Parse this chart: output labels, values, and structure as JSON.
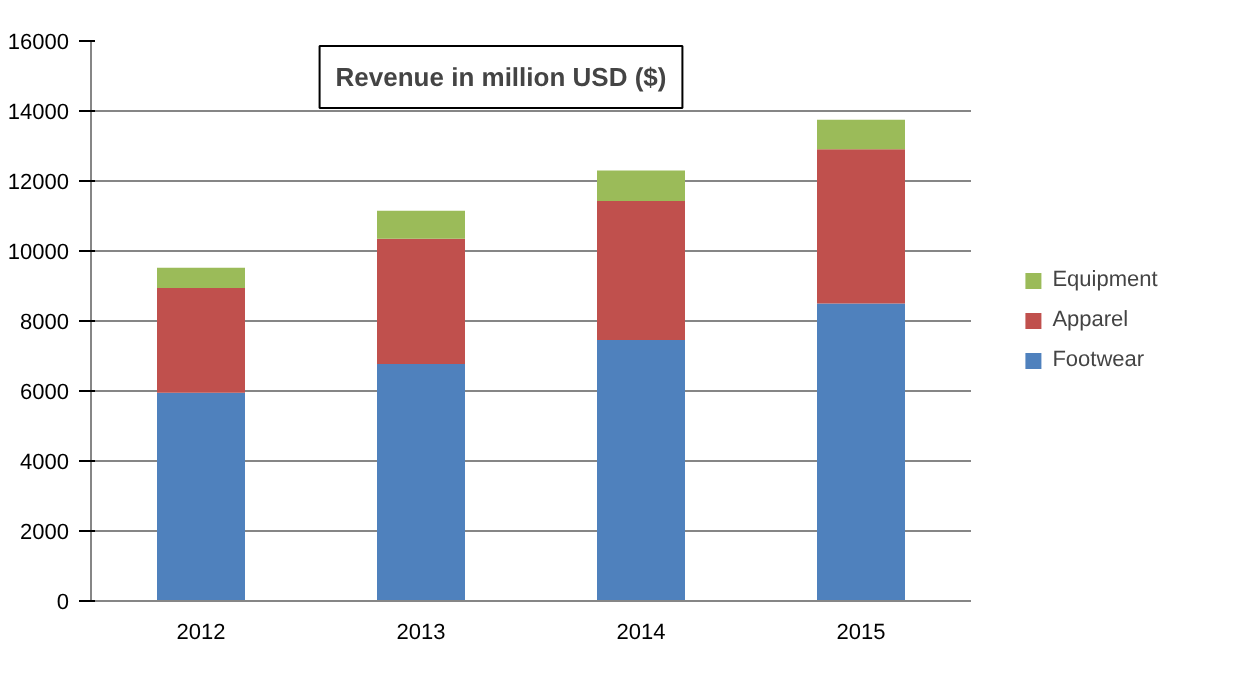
{
  "chart_data": {
    "type": "bar",
    "stacked": true,
    "title": "Revenue in million USD ($)",
    "categories": [
      "2012",
      "2013",
      "2014",
      "2015"
    ],
    "series": [
      {
        "name": "Footwear",
        "color": "#4f81bd",
        "values": [
          5950,
          6770,
          7460,
          8500
        ]
      },
      {
        "name": "Apparel",
        "color": "#c0504d",
        "values": [
          2990,
          3580,
          3970,
          4410
        ]
      },
      {
        "name": "Equipment",
        "color": "#9bbb59",
        "values": [
          580,
          800,
          870,
          840
        ]
      }
    ],
    "ylim": [
      0,
      16000
    ],
    "yticks": [
      0,
      2000,
      4000,
      6000,
      8000,
      10000,
      12000,
      14000,
      16000
    ],
    "grid": "y",
    "legend": "right"
  }
}
